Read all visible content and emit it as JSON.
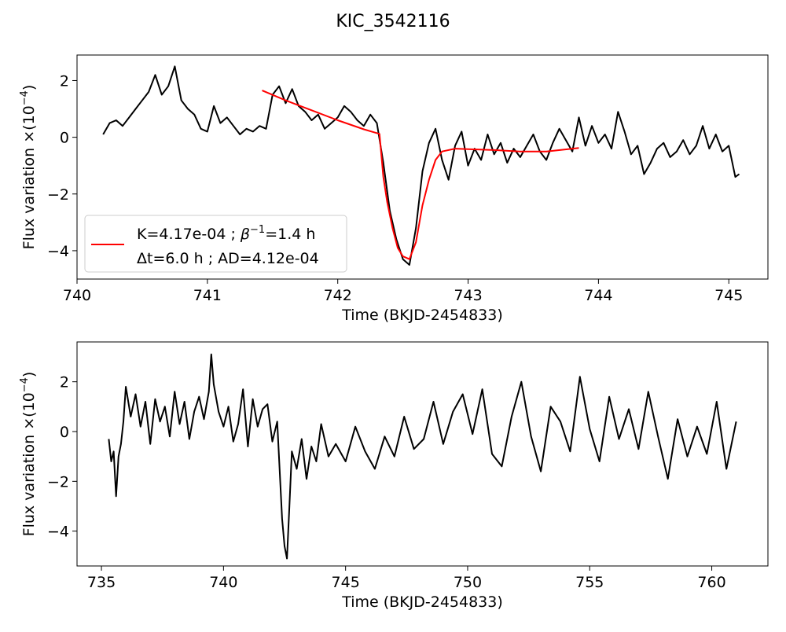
{
  "figure": {
    "title": "KIC_3542116"
  },
  "chart_data": [
    {
      "type": "line",
      "xlabel": "Time (BKJD-2454833)",
      "ylabel_main": "Flux variation ×(10",
      "ylabel_exp": "−4",
      "ylabel_close": ")",
      "xlim": [
        740.0,
        745.3
      ],
      "ylim": [
        -5.0,
        2.9
      ],
      "xticks": [
        740,
        741,
        742,
        743,
        744,
        745
      ],
      "yticks": [
        -4,
        -2,
        0,
        2
      ],
      "legend": {
        "placement": "lower-left",
        "line1_prefix": "K=4.17e-04 ; ",
        "line1_beta": "β",
        "line1_exp": "−1",
        "line1_suffix": "=1.4 h",
        "line2": "Δt=6.0 h ; AD=4.12e-04"
      },
      "series": [
        {
          "color": "#000000",
          "x": [
            740.2,
            740.25,
            740.3,
            740.35,
            740.4,
            740.45,
            740.5,
            740.55,
            740.6,
            740.65,
            740.7,
            740.75,
            740.8,
            740.85,
            740.9,
            740.95,
            741.0,
            741.05,
            741.1,
            741.15,
            741.2,
            741.25,
            741.3,
            741.35,
            741.4,
            741.45,
            741.5,
            741.55,
            741.6,
            741.65,
            741.7,
            741.75,
            741.8,
            741.85,
            741.9,
            741.95,
            742.0,
            742.05,
            742.1,
            742.15,
            742.2,
            742.25,
            742.3,
            742.35,
            742.4,
            742.45,
            742.5,
            742.55,
            742.6,
            742.65,
            742.7,
            742.75,
            742.8,
            742.85,
            742.9,
            742.95,
            743.0,
            743.05,
            743.1,
            743.15,
            743.2,
            743.25,
            743.3,
            743.35,
            743.4,
            743.45,
            743.5,
            743.55,
            743.6,
            743.65,
            743.7,
            743.75,
            743.8,
            743.85,
            743.9,
            743.95,
            744.0,
            744.05,
            744.1,
            744.15,
            744.2,
            744.25,
            744.3,
            744.35,
            744.4,
            744.45,
            744.5,
            744.55,
            744.6,
            744.65,
            744.7,
            744.75,
            744.8,
            744.85,
            744.9,
            744.95,
            745.0,
            745.05,
            745.08
          ],
          "y": [
            0.1,
            0.5,
            0.6,
            0.4,
            0.7,
            1.0,
            1.3,
            1.6,
            2.2,
            1.5,
            1.8,
            2.5,
            1.3,
            1.0,
            0.8,
            0.3,
            0.2,
            1.1,
            0.5,
            0.7,
            0.4,
            0.1,
            0.3,
            0.2,
            0.4,
            0.3,
            1.5,
            1.8,
            1.2,
            1.7,
            1.1,
            0.9,
            0.6,
            0.8,
            0.3,
            0.5,
            0.7,
            1.1,
            0.9,
            0.6,
            0.4,
            0.8,
            0.5,
            -0.9,
            -2.6,
            -3.6,
            -4.3,
            -4.5,
            -3.2,
            -1.2,
            -0.2,
            0.3,
            -0.8,
            -1.5,
            -0.3,
            0.2,
            -1.0,
            -0.4,
            -0.8,
            0.1,
            -0.6,
            -0.2,
            -0.9,
            -0.4,
            -0.7,
            -0.3,
            0.1,
            -0.5,
            -0.8,
            -0.2,
            0.3,
            -0.1,
            -0.5,
            0.7,
            -0.3,
            0.4,
            -0.2,
            0.1,
            -0.4,
            0.9,
            0.2,
            -0.6,
            -0.3,
            -1.3,
            -0.9,
            -0.4,
            -0.2,
            -0.7,
            -0.5,
            -0.1,
            -0.6,
            -0.3,
            0.4,
            -0.4,
            0.1,
            -0.5,
            -0.3,
            -1.4,
            -1.3
          ]
        },
        {
          "color": "#ff0000",
          "x": [
            741.42,
            741.6,
            741.8,
            742.0,
            742.2,
            742.32,
            742.35,
            742.38,
            742.42,
            742.46,
            742.5,
            742.55,
            742.6,
            742.65,
            742.7,
            742.75,
            742.8,
            742.9,
            743.0,
            743.2,
            743.4,
            743.6,
            743.85
          ],
          "y": [
            1.65,
            1.3,
            0.95,
            0.6,
            0.28,
            0.12,
            -1.4,
            -2.3,
            -3.2,
            -3.9,
            -4.2,
            -4.3,
            -3.7,
            -2.4,
            -1.5,
            -0.8,
            -0.5,
            -0.4,
            -0.42,
            -0.45,
            -0.5,
            -0.5,
            -0.38
          ]
        }
      ]
    },
    {
      "type": "line",
      "xlabel": "Time (BKJD-2454833)",
      "ylabel_main": "Flux variation ×(10",
      "ylabel_exp": "−4",
      "ylabel_close": ")",
      "xlim": [
        734.0,
        762.3
      ],
      "ylim": [
        -5.4,
        3.6
      ],
      "xticks": [
        735,
        740,
        745,
        750,
        755,
        760
      ],
      "yticks": [
        -4,
        -2,
        0,
        2
      ],
      "series": [
        {
          "color": "#000000",
          "x": [
            735.3,
            735.4,
            735.5,
            735.6,
            735.7,
            735.8,
            735.9,
            736.0,
            736.2,
            736.4,
            736.6,
            736.8,
            737.0,
            737.2,
            737.4,
            737.6,
            737.8,
            738.0,
            738.2,
            738.4,
            738.6,
            738.8,
            739.0,
            739.2,
            739.4,
            739.5,
            739.6,
            739.8,
            740.0,
            740.2,
            740.4,
            740.6,
            740.8,
            741.0,
            741.2,
            741.4,
            741.6,
            741.8,
            742.0,
            742.2,
            742.4,
            742.5,
            742.6,
            742.7,
            742.8,
            743.0,
            743.2,
            743.4,
            743.6,
            743.8,
            744.0,
            744.3,
            744.6,
            745.0,
            745.4,
            745.8,
            746.2,
            746.6,
            747.0,
            747.4,
            747.8,
            748.2,
            748.6,
            749.0,
            749.4,
            749.8,
            750.2,
            750.6,
            751.0,
            751.4,
            751.8,
            752.2,
            752.6,
            753.0,
            753.4,
            753.8,
            754.2,
            754.6,
            755.0,
            755.4,
            755.8,
            756.2,
            756.6,
            757.0,
            757.4,
            757.8,
            758.2,
            758.6,
            759.0,
            759.4,
            759.8,
            760.2,
            760.6,
            761.0
          ],
          "y": [
            -0.3,
            -1.2,
            -0.8,
            -2.6,
            -1.0,
            -0.5,
            0.4,
            1.8,
            0.6,
            1.5,
            0.2,
            1.2,
            -0.5,
            1.3,
            0.4,
            1.0,
            -0.2,
            1.6,
            0.3,
            1.2,
            -0.3,
            0.8,
            1.4,
            0.5,
            1.6,
            3.1,
            1.9,
            0.8,
            0.2,
            1.0,
            -0.4,
            0.3,
            1.7,
            -0.6,
            1.3,
            0.2,
            0.9,
            1.1,
            -0.4,
            0.4,
            -3.5,
            -4.6,
            -5.1,
            -3.0,
            -0.8,
            -1.5,
            -0.3,
            -1.9,
            -0.6,
            -1.2,
            0.3,
            -1.0,
            -0.5,
            -1.2,
            0.2,
            -0.8,
            -1.5,
            -0.2,
            -1.0,
            0.6,
            -0.7,
            -0.3,
            1.2,
            -0.5,
            0.8,
            1.5,
            -0.1,
            1.7,
            -0.9,
            -1.4,
            0.6,
            2.0,
            -0.2,
            -1.6,
            1.0,
            0.4,
            -0.8,
            2.2,
            0.1,
            -1.2,
            1.4,
            -0.3,
            0.9,
            -0.7,
            1.6,
            -0.2,
            -1.9,
            0.5,
            -1.0,
            0.2,
            -0.9,
            1.2,
            -1.5,
            0.4
          ]
        }
      ]
    }
  ]
}
